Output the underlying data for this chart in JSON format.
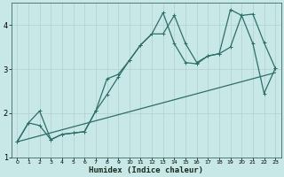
{
  "xlabel": "Humidex (Indice chaleur)",
  "background_color": "#c8e8e8",
  "line_color": "#2e6e68",
  "grid_color": "#b0d0d0",
  "xlim": [
    -0.5,
    23.5
  ],
  "ylim": [
    1.0,
    4.5
  ],
  "yticks": [
    1,
    2,
    3,
    4
  ],
  "xticks": [
    0,
    1,
    2,
    3,
    4,
    5,
    6,
    7,
    8,
    9,
    10,
    11,
    12,
    13,
    14,
    15,
    16,
    17,
    18,
    19,
    20,
    21,
    22,
    23
  ],
  "line1_x": [
    0,
    1,
    2,
    3,
    4,
    5,
    6,
    7,
    8,
    9,
    10,
    11,
    12,
    13,
    14,
    15,
    16,
    17,
    18,
    19,
    20,
    21,
    22,
    23
  ],
  "line1_y": [
    1.35,
    1.78,
    2.05,
    1.4,
    1.52,
    1.55,
    1.58,
    2.05,
    2.42,
    2.82,
    3.2,
    3.55,
    3.8,
    3.8,
    4.22,
    3.58,
    3.15,
    3.3,
    3.35,
    3.5,
    4.22,
    4.25,
    3.6,
    3.02
  ],
  "line2_x": [
    0,
    1,
    2,
    3,
    4,
    5,
    6,
    7,
    8,
    9,
    10,
    11,
    12,
    13,
    14,
    15,
    16,
    17,
    18,
    19,
    20,
    21,
    22,
    23
  ],
  "line2_y": [
    1.35,
    1.78,
    1.72,
    1.4,
    1.52,
    1.55,
    1.58,
    2.05,
    2.78,
    2.88,
    3.2,
    3.55,
    3.8,
    4.28,
    3.58,
    3.15,
    3.12,
    3.3,
    3.35,
    4.35,
    4.22,
    3.58,
    2.45,
    3.02
  ],
  "line3_x": [
    0,
    23
  ],
  "line3_y": [
    1.35,
    2.92
  ]
}
